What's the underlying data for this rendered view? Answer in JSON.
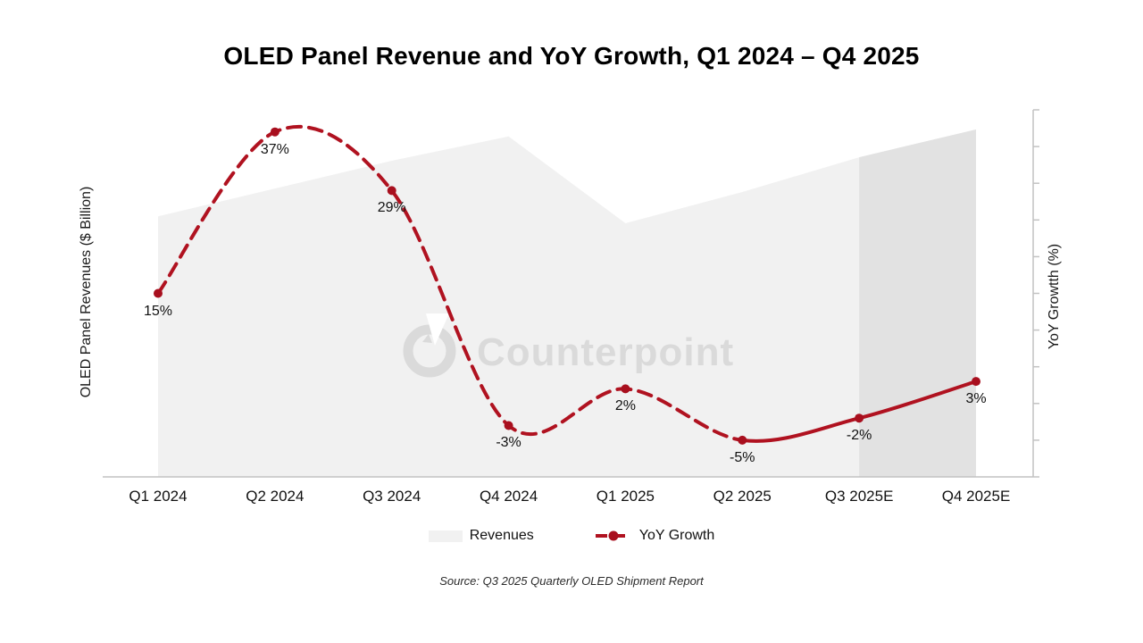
{
  "chart": {
    "title": "OLED Panel Revenue and YoY Growth, Q1 2024 – Q4 2025",
    "left_axis_label": "OLED Panel Revenues ($ Billion)",
    "right_axis_label": "YoY Growtth (%)",
    "source": "Source: Q3 2025 Quarterly OLED Shipment Report",
    "watermark": "Counterpoint",
    "colors": {
      "line": "#B01220",
      "marker": "#A80F1E",
      "area": "#F1F1F1",
      "forecast_band": "#E2E2E2",
      "axis": "#C2C2C2",
      "watermark": "#DADADA",
      "label_text": "#111111"
    }
  },
  "chart_data": {
    "type": "combo (area + line)",
    "categories": [
      "Q1 2024",
      "Q2 2024",
      "Q3 2024",
      "Q4 2024",
      "Q1 2025",
      "Q2 2025",
      "Q3 2025E",
      "Q4 2025E"
    ],
    "series": [
      {
        "name": "Revenues",
        "type": "area",
        "axis": "left",
        "unit": "$ Billion (axis scale unlabeled)",
        "values_relative": [
          0.75,
          0.83,
          0.91,
          0.98,
          0.73,
          0.82,
          0.92,
          1.0
        ],
        "forecast_from": "Q3 2025E"
      },
      {
        "name": "YoY Growth",
        "type": "line",
        "axis": "right",
        "values_pct": [
          15,
          37,
          29,
          -3,
          2,
          -5,
          -2,
          3
        ],
        "labels": [
          "15%",
          "37%",
          "29%",
          "-3%",
          "2%",
          "-5%",
          "-2%",
          "3%"
        ],
        "line_style_note": "dashed through Q2 2025, solid for forecast segment"
      }
    ],
    "line_solid_from_index": 5,
    "forecast_band_from_index": 6,
    "right_axis": {
      "min": -10,
      "max": 40,
      "tick_step": 5,
      "tick_labels_visible": false
    },
    "left_axis": {
      "tick_labels_visible": false
    },
    "grid": false,
    "legend_position": "bottom"
  }
}
